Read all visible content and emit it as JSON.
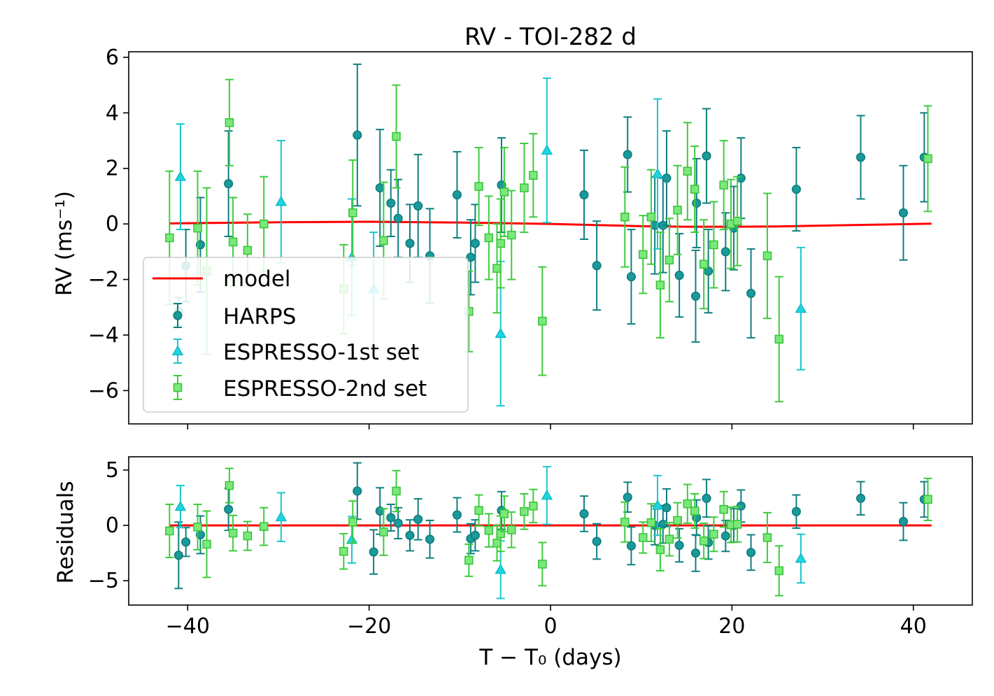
{
  "chart_data": [
    {
      "type": "scatter",
      "title": "RV - TOI-282 d",
      "ylabel": "RV (ms⁻¹)",
      "xlabel": "",
      "xlim": [
        -46.5,
        46.5
      ],
      "ylim": [
        -7.2,
        6.2
      ],
      "xticks": [
        -40,
        -20,
        0,
        20,
        40
      ],
      "xtick_labels": [
        "",
        "",
        "",
        "",
        ""
      ],
      "yticks": [
        -6,
        -4,
        -2,
        0,
        2,
        4,
        6
      ],
      "ytick_labels": [
        "−6",
        "−4",
        "−2",
        "0",
        "2",
        "4",
        "6"
      ],
      "legend": {
        "position": "lower-left",
        "entries": [
          "model",
          "HARPS",
          "ESPRESSO-1st set",
          "ESPRESSO-2nd set"
        ]
      },
      "model": {
        "name": "model",
        "color": "#ff0000",
        "x": [
          -42,
          -30,
          -20,
          -10,
          0,
          5,
          10,
          15,
          20,
          25,
          30,
          35,
          42
        ],
        "y": [
          0.02,
          0.06,
          0.08,
          0.05,
          0.0,
          -0.04,
          -0.08,
          -0.1,
          -0.1,
          -0.09,
          -0.06,
          -0.03,
          0.01
        ]
      },
      "series": [
        {
          "name": "HARPS",
          "marker": "circle",
          "color": "#1a9a9a",
          "edge": "#0f7a7a",
          "err_color": "#0f7f7f",
          "points": [
            [
              -41.0,
              -3.15,
              0.5
            ],
            [
              -40.2,
              -1.5,
              1.3
            ],
            [
              -38.6,
              -0.75,
              1.7
            ],
            [
              -35.5,
              1.45,
              1.9
            ],
            [
              -21.3,
              3.2,
              2.55
            ],
            [
              -18.8,
              1.3,
              2.1
            ],
            [
              -17.6,
              0.75,
              1.2
            ],
            [
              -16.8,
              0.2,
              1.4
            ],
            [
              -15.5,
              -0.7,
              1.4
            ],
            [
              -14.6,
              0.65,
              1.85
            ],
            [
              -13.3,
              -1.15,
              1.7
            ],
            [
              -10.3,
              1.05,
              1.55
            ],
            [
              -8.8,
              -1.2,
              1.35
            ],
            [
              -8.3,
              -0.7,
              1.4
            ],
            [
              -5.4,
              1.4,
              1.7
            ],
            [
              3.7,
              1.05,
              1.6
            ],
            [
              5.1,
              -1.5,
              1.6
            ],
            [
              8.5,
              2.5,
              1.35
            ],
            [
              8.9,
              -1.9,
              1.7
            ],
            [
              11.5,
              -0.05,
              1.75
            ],
            [
              12.4,
              -0.05,
              1.7
            ],
            [
              12.8,
              1.65,
              1.7
            ],
            [
              14.2,
              -1.85,
              1.5
            ],
            [
              16.0,
              -2.6,
              1.65
            ],
            [
              16.1,
              0.75,
              1.6
            ],
            [
              17.2,
              2.45,
              1.7
            ],
            [
              17.4,
              -1.7,
              1.5
            ],
            [
              19.3,
              -1.0,
              1.4
            ],
            [
              20.2,
              -0.15,
              1.5
            ],
            [
              21.0,
              1.65,
              1.45
            ],
            [
              22.1,
              -2.5,
              1.6
            ],
            [
              27.1,
              1.25,
              1.5
            ],
            [
              34.2,
              2.4,
              1.5
            ],
            [
              38.9,
              0.4,
              1.7
            ],
            [
              41.2,
              2.4,
              1.6
            ]
          ]
        },
        {
          "name": "ESPRESSO-1st set",
          "marker": "triangle",
          "color": "#1fd6e0",
          "edge": "#10bcc6",
          "err_color": "#18c8d0",
          "points": [
            [
              -40.8,
              1.7,
              1.9
            ],
            [
              -29.7,
              0.8,
              2.2
            ],
            [
              -21.9,
              -1.2,
              2.1
            ],
            [
              -19.5,
              -2.35,
              2.05
            ],
            [
              -5.5,
              -3.95,
              2.6
            ],
            [
              -0.4,
              2.65,
              2.6
            ],
            [
              11.8,
              1.8,
              2.7
            ],
            [
              27.6,
              -3.05,
              2.2
            ]
          ]
        },
        {
          "name": "ESPRESSO-2nd set",
          "marker": "square",
          "color": "#7be87b",
          "edge": "#36c436",
          "err_color": "#3ccc3c",
          "points": [
            [
              -42.0,
              -0.5,
              2.4
            ],
            [
              -38.9,
              -0.15,
              2.05
            ],
            [
              -37.9,
              -1.7,
              3.0
            ],
            [
              -35.4,
              3.65,
              1.55
            ],
            [
              -35.0,
              -0.65,
              1.6
            ],
            [
              -33.4,
              -0.95,
              1.3
            ],
            [
              -31.6,
              0.0,
              1.7
            ],
            [
              -22.8,
              -2.35,
              1.6
            ],
            [
              -21.8,
              0.4,
              1.9
            ],
            [
              -18.4,
              -0.6,
              2.1
            ],
            [
              -17.0,
              3.15,
              1.85
            ],
            [
              -9.0,
              -3.15,
              1.45
            ],
            [
              -7.9,
              1.35,
              1.4
            ],
            [
              -6.8,
              -0.5,
              1.5
            ],
            [
              -5.9,
              -1.6,
              1.6
            ],
            [
              -5.5,
              -0.7,
              1.6
            ],
            [
              -5.1,
              1.15,
              1.6
            ],
            [
              -4.3,
              -0.4,
              1.6
            ],
            [
              -2.9,
              1.3,
              1.6
            ],
            [
              -1.9,
              1.75,
              1.5
            ],
            [
              -0.9,
              -3.5,
              1.95
            ],
            [
              8.2,
              0.25,
              1.8
            ],
            [
              10.2,
              -1.1,
              1.4
            ],
            [
              11.1,
              0.25,
              1.7
            ],
            [
              12.1,
              -2.2,
              1.9
            ],
            [
              13.1,
              -1.3,
              1.5
            ],
            [
              14.0,
              0.5,
              1.6
            ],
            [
              15.1,
              1.9,
              1.75
            ],
            [
              15.9,
              1.25,
              1.55
            ],
            [
              16.9,
              -1.45,
              1.6
            ],
            [
              18.0,
              -0.75,
              1.55
            ],
            [
              19.1,
              1.4,
              1.6
            ],
            [
              19.9,
              0.0,
              1.6
            ],
            [
              20.6,
              0.1,
              1.6
            ],
            [
              23.9,
              -1.15,
              2.25
            ],
            [
              25.2,
              -4.15,
              2.25
            ],
            [
              41.6,
              2.35,
              1.9
            ]
          ]
        }
      ]
    },
    {
      "type": "scatter",
      "title": "",
      "ylabel": "Residuals",
      "xlabel": "T − T₀ (days)",
      "xlim": [
        -46.5,
        46.5
      ],
      "ylim": [
        -7.2,
        6.2
      ],
      "xticks": [
        -40,
        -20,
        0,
        20,
        40
      ],
      "xtick_labels": [
        "−40",
        "−20",
        "0",
        "20",
        "40"
      ],
      "yticks": [
        -5,
        0,
        5
      ],
      "ytick_labels": [
        "−5",
        "0",
        "5"
      ],
      "model": {
        "color": "#ff0000",
        "x": [
          -42,
          42
        ],
        "y": [
          0,
          0
        ]
      },
      "series": [
        {
          "name": "HARPS",
          "marker": "circle",
          "color": "#1a9a9a",
          "edge": "#0f7a7a",
          "err_color": "#0f7f7f",
          "points": [
            [
              -41.0,
              -2.7,
              3.0
            ],
            [
              -40.2,
              -1.5,
              1.3
            ],
            [
              -38.6,
              -0.85,
              1.7
            ],
            [
              -35.5,
              1.45,
              1.9
            ],
            [
              -21.3,
              3.1,
              2.55
            ],
            [
              -19.5,
              -2.4,
              2.0
            ],
            [
              -18.8,
              1.3,
              2.1
            ],
            [
              -17.6,
              0.7,
              1.2
            ],
            [
              -16.8,
              0.2,
              1.4
            ],
            [
              -15.5,
              -0.9,
              1.4
            ],
            [
              -14.6,
              0.55,
              1.85
            ],
            [
              -13.3,
              -1.25,
              1.7
            ],
            [
              -10.3,
              0.95,
              1.55
            ],
            [
              -8.8,
              -1.2,
              1.35
            ],
            [
              -8.3,
              -0.9,
              1.4
            ],
            [
              -5.4,
              1.35,
              1.7
            ],
            [
              3.7,
              1.05,
              1.6
            ],
            [
              5.1,
              -1.45,
              1.6
            ],
            [
              8.5,
              2.55,
              1.35
            ],
            [
              8.9,
              -1.85,
              1.7
            ],
            [
              11.5,
              0.0,
              1.75
            ],
            [
              12.4,
              0.1,
              1.7
            ],
            [
              12.8,
              1.6,
              1.7
            ],
            [
              14.2,
              -1.8,
              1.5
            ],
            [
              16.0,
              -2.5,
              1.65
            ],
            [
              16.1,
              0.7,
              1.6
            ],
            [
              17.2,
              2.45,
              1.7
            ],
            [
              17.4,
              -1.55,
              1.5
            ],
            [
              19.3,
              -0.95,
              1.4
            ],
            [
              20.2,
              0.0,
              1.5
            ],
            [
              21.0,
              1.75,
              1.45
            ],
            [
              22.1,
              -2.45,
              1.6
            ],
            [
              27.1,
              1.25,
              1.5
            ],
            [
              34.2,
              2.45,
              1.5
            ],
            [
              38.9,
              0.35,
              1.7
            ],
            [
              41.2,
              2.35,
              1.6
            ]
          ]
        },
        {
          "name": "ESPRESSO-1st set",
          "marker": "triangle",
          "color": "#1fd6e0",
          "edge": "#10bcc6",
          "err_color": "#18c8d0",
          "points": [
            [
              -40.8,
              1.7,
              1.9
            ],
            [
              -29.7,
              0.75,
              2.2
            ],
            [
              -21.9,
              -1.3,
              2.1
            ],
            [
              -5.5,
              -4.0,
              2.6
            ],
            [
              -0.4,
              2.7,
              2.6
            ],
            [
              11.8,
              1.8,
              2.7
            ],
            [
              27.6,
              -3.0,
              2.2
            ]
          ]
        },
        {
          "name": "ESPRESSO-2nd set",
          "marker": "square",
          "color": "#7be87b",
          "edge": "#36c436",
          "err_color": "#3ccc3c",
          "points": [
            [
              -42.0,
              -0.5,
              2.4
            ],
            [
              -38.9,
              -0.15,
              2.05
            ],
            [
              -37.9,
              -1.7,
              3.0
            ],
            [
              -35.4,
              3.6,
              1.55
            ],
            [
              -35.0,
              -0.7,
              1.6
            ],
            [
              -33.4,
              -0.95,
              1.3
            ],
            [
              -31.6,
              -0.1,
              1.7
            ],
            [
              -22.8,
              -2.35,
              1.6
            ],
            [
              -21.8,
              0.3,
              1.9
            ],
            [
              -18.4,
              -0.6,
              2.1
            ],
            [
              -17.0,
              3.1,
              1.85
            ],
            [
              -9.0,
              -3.15,
              1.45
            ],
            [
              -7.9,
              1.35,
              1.4
            ],
            [
              -6.8,
              -0.45,
              1.5
            ],
            [
              -5.9,
              -1.6,
              1.6
            ],
            [
              -5.5,
              -0.75,
              1.6
            ],
            [
              -5.1,
              1.05,
              1.6
            ],
            [
              -4.3,
              -0.4,
              1.6
            ],
            [
              -2.9,
              1.25,
              1.6
            ],
            [
              -1.9,
              1.75,
              1.5
            ],
            [
              -0.9,
              -3.5,
              1.95
            ],
            [
              8.2,
              0.3,
              1.8
            ],
            [
              10.2,
              -1.1,
              1.4
            ],
            [
              11.1,
              0.25,
              1.7
            ],
            [
              12.1,
              -2.2,
              1.9
            ],
            [
              13.1,
              -1.25,
              1.5
            ],
            [
              14.0,
              0.45,
              1.6
            ],
            [
              15.1,
              1.95,
              1.75
            ],
            [
              15.9,
              1.3,
              1.55
            ],
            [
              16.9,
              -1.4,
              1.6
            ],
            [
              18.0,
              -0.8,
              1.55
            ],
            [
              19.1,
              1.45,
              1.6
            ],
            [
              19.9,
              0.05,
              1.6
            ],
            [
              20.6,
              0.1,
              1.6
            ],
            [
              23.9,
              -1.1,
              2.25
            ],
            [
              25.2,
              -4.1,
              2.25
            ],
            [
              41.6,
              2.35,
              1.9
            ]
          ]
        }
      ]
    }
  ]
}
